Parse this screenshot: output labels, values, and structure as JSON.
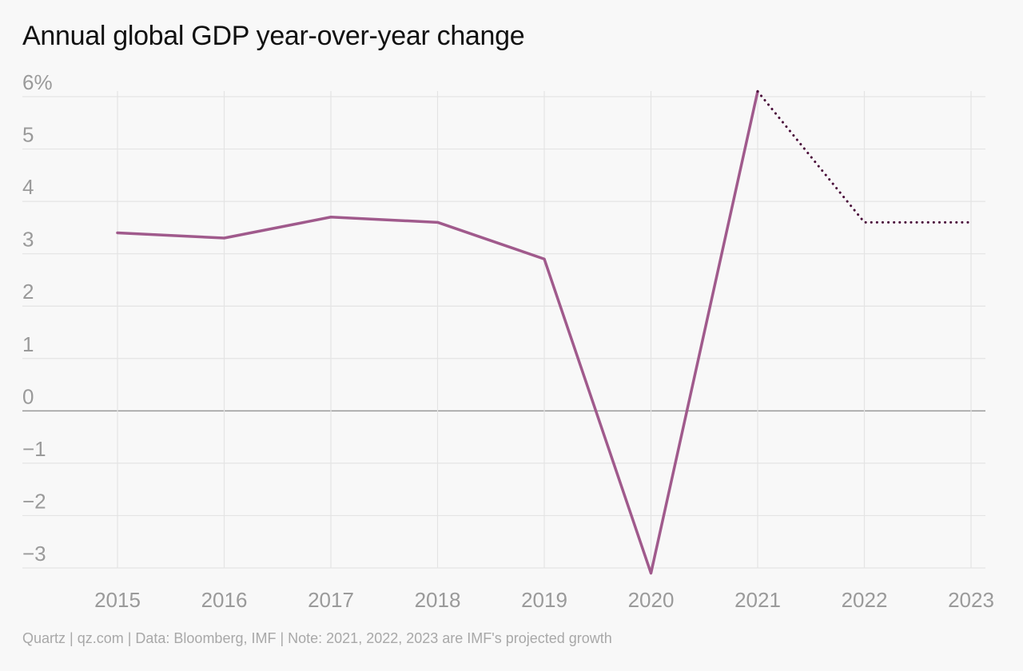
{
  "chart_data": {
    "type": "line",
    "title": "Annual global GDP year-over-year change",
    "xlabel": "",
    "ylabel": "",
    "categories": [
      "2015",
      "2016",
      "2017",
      "2018",
      "2019",
      "2020",
      "2021",
      "2022",
      "2023"
    ],
    "series": [
      {
        "style": "solid",
        "color": "#a05a8c",
        "x": [
          "2015",
          "2016",
          "2017",
          "2018",
          "2019",
          "2020",
          "2021"
        ],
        "values": [
          3.4,
          3.3,
          3.7,
          3.6,
          2.9,
          -3.1,
          6.1
        ]
      },
      {
        "style": "dotted",
        "color": "#4a0d3a",
        "x": [
          "2021",
          "2022",
          "2023"
        ],
        "values": [
          6.1,
          3.6,
          3.6
        ]
      }
    ],
    "ylim": [
      -3,
      6
    ],
    "yticks": [
      {
        "value": 6,
        "label": "6%"
      },
      {
        "value": 5,
        "label": "5"
      },
      {
        "value": 4,
        "label": "4"
      },
      {
        "value": 3,
        "label": "3"
      },
      {
        "value": 2,
        "label": "2"
      },
      {
        "value": 1,
        "label": "1"
      },
      {
        "value": 0,
        "label": "0"
      },
      {
        "value": -1,
        "label": "−1"
      },
      {
        "value": -2,
        "label": "−2"
      },
      {
        "value": -3,
        "label": "−3"
      }
    ],
    "grid": true,
    "legend": "none"
  },
  "footer": {
    "source": "Quartz | qz.com | Data: Bloomberg, IMF | Note: 2021, 2022, 2023 are IMF's projected growth"
  },
  "colors": {
    "background": "#f8f8f8",
    "grid": "#e4e4e4",
    "zero_line": "#9a9a9a",
    "actual_line": "#a05a8c",
    "projected_line": "#4a0d3a"
  }
}
